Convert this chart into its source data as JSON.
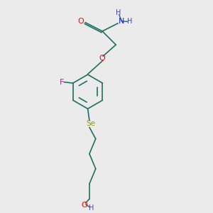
{
  "background_color": "#ebebeb",
  "atom_colors": {
    "O": "#ff0000",
    "N": "#1a1aff",
    "F": "#dd00dd",
    "Se": "#9a9a00",
    "C": "#207060",
    "H": "#4444aa"
  },
  "bond_color": "#207060",
  "figsize": [
    3.0,
    3.0
  ],
  "dpi": 100
}
